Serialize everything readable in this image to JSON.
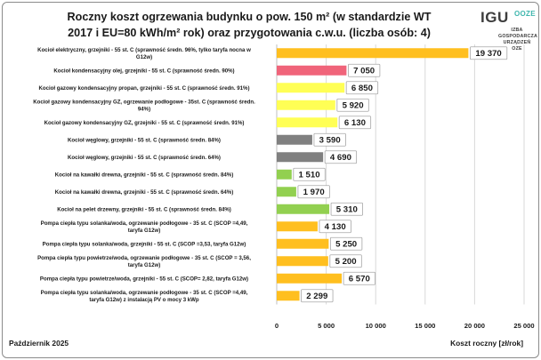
{
  "title": "Roczny koszt ogrzewania budynku  o pow. 150 m²  (w standardzie WT 2017 i EU=80 kWh/m² rok) oraz przygotowania c.w.u. (liczba osób: 4)",
  "logo": {
    "main": "IGU",
    "sub": "OOZE",
    "lines": [
      "IZBA",
      "GOSPODARCZA",
      "URZĄDZEŃ",
      "OZE"
    ]
  },
  "footer": {
    "date": "Październik 2025",
    "xlabel": "Koszt roczny [zł/rok]"
  },
  "colors": {
    "red": "#f0647a",
    "yellow": "#ffff55",
    "orange": "#ffbf1f",
    "gray": "#808080",
    "green": "#92d050"
  },
  "chart_data": {
    "type": "bar",
    "orientation": "horizontal",
    "title": "Roczny koszt ogrzewania budynku  o pow. 150 m²  (w standardzie WT 2017 i EU=80 kWh/m² rok) oraz przygotowania c.w.u. (liczba osób: 4)",
    "xlabel": "Koszt roczny [zł/rok]",
    "ylabel": "",
    "xlim": [
      0,
      25000
    ],
    "xticks": [
      0,
      5000,
      10000,
      15000,
      20000,
      25000
    ],
    "xtick_labels": [
      "0",
      "5 000",
      "10 000",
      "15 000",
      "20 000",
      "25 000"
    ],
    "gridlines": true,
    "categories": [
      [
        "Kocioł  elektryczny,  grzejniki - 55 st. C  (sprawność średn. 96%, tylko taryfa nocna w",
        "G12w)"
      ],
      [
        "Kocioł  kondensacyjny olej, grzejniki - 55 st. C  (sprawność średn. 90%)"
      ],
      [
        "Kocioł gazowy kondensacyjny propan, grzejniki - 55 st. C  (sprawność średn. 91%)"
      ],
      [
        "Kocioł gazowy kondensacyjny GZ, ogrzewanie podłogowe - 35st. C  (sprawność średn.",
        "94%)"
      ],
      [
        "Kocioł gazowy kondensacyjny GZ, grzejniki - 55 st. C  (sprawność średn. 91%)"
      ],
      [
        "Kocioł węglowy, grzejniki - 55 st. C  (sprawność średn. 84%)"
      ],
      [
        "Kocioł węglowy,  grzejniki - 55 st. C  (sprawność średn. 64%)"
      ],
      [
        "Kocioł na kawałki drewna, grzejniki - 55 st. C  (sprawność średn. 84%)"
      ],
      [
        "Kocioł na kawałki drewna, grzejniki - 55 st. C  (sprawność średn. 64%)"
      ],
      [
        "Kocioł na pelet drzewny, grzejniki - 55 st. C  (sprawność średn. 84%)"
      ],
      [
        "Pompa ciepła typu solanka/woda, ogrzewanie podłogowe - 35 st. C  (SCOP =4,49,",
        "taryfa G12w)"
      ],
      [
        "Pompa ciepła typu solanka/woda, grzejniki - 55 st. C  (SCOP =3,53, taryfa G12w)"
      ],
      [
        "Pompa ciepła typu powietrze/woda, ogrzewanie podłogowe - 35 st. C (SCOP = 3,56,",
        "taryfa G12w)"
      ],
      [
        "Pompa ciepła typu powietrze/woda, grzejniki - 55 st. C  (SCOP= 2,82, taryfa G12w)"
      ],
      [
        "Pompa ciepła typu solanka/woda, ogrzewanie podłogowe - 35 st. C  (SCOP =4,49,",
        "taryfa G12w) z instalacją PV o mocy 3 kWp"
      ]
    ],
    "values": [
      19370,
      7050,
      6850,
      5920,
      6130,
      3590,
      4690,
      1510,
      1970,
      5310,
      4130,
      5250,
      5200,
      6570,
      2299
    ],
    "value_labels": [
      "19 370",
      "7 050",
      "6 850",
      "5 920",
      "6 130",
      "3 590",
      "4 690",
      "1 510",
      "1 970",
      "5 310",
      "4 130",
      "5 250",
      "5 200",
      "6 570",
      "2 299"
    ],
    "bar_colors": [
      "#ffbf1f",
      "#f0647a",
      "#ffff55",
      "#ffff55",
      "#ffff55",
      "#808080",
      "#808080",
      "#92d050",
      "#92d050",
      "#92d050",
      "#ffbf1f",
      "#ffbf1f",
      "#ffbf1f",
      "#ffbf1f",
      "#ffbf1f"
    ]
  }
}
